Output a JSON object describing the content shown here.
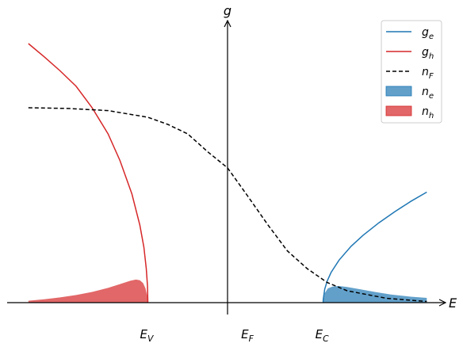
{
  "chart_data": {
    "type": "area",
    "xlabel": "E",
    "ylabel": "g",
    "ticks": [
      {
        "label": "E_V",
        "main": "E",
        "sub": "V",
        "x": -1.0
      },
      {
        "label": "E_F",
        "main": "E",
        "sub": "F",
        "x": 0.27
      },
      {
        "label": "E_C",
        "main": "E",
        "sub": "C",
        "x": 1.2
      }
    ],
    "xlim": [
      -2.5,
      2.6
    ],
    "ylim": [
      -0.05,
      1.1
    ],
    "legend": {
      "placement": "top-right"
    },
    "series": [
      {
        "name": "g_e",
        "main": "g",
        "sub": "e",
        "kind": "line",
        "color": "#1f77b4",
        "x": [
          1.2,
          1.201,
          1.22,
          1.25,
          1.3,
          1.4,
          1.55,
          1.7,
          1.9,
          2.1,
          2.3,
          2.5
        ],
        "y": [
          0.0,
          0.013,
          0.057,
          0.09,
          0.127,
          0.179,
          0.237,
          0.283,
          0.336,
          0.383,
          0.426,
          0.465
        ]
      },
      {
        "name": "g_h",
        "main": "g",
        "sub": "h",
        "kind": "line",
        "color": "#d62728",
        "x": [
          -2.5,
          -2.3,
          -2.1,
          -1.9,
          -1.7,
          -1.5,
          -1.35,
          -1.2,
          -1.1,
          -1.05,
          -1.02,
          -1.005,
          -1.0
        ],
        "y": [
          1.09,
          1.034,
          0.975,
          0.91,
          0.82,
          0.71,
          0.598,
          0.457,
          0.326,
          0.233,
          0.143,
          0.072,
          0.0
        ]
      },
      {
        "name": "n_F",
        "main": "n",
        "sub": "F",
        "kind": "dashed-line",
        "color": "#000000",
        "x": [
          -2.5,
          -2.0,
          -1.5,
          -1.0,
          -0.75,
          -0.5,
          -0.25,
          0.0,
          0.25,
          0.5,
          0.75,
          1.0,
          1.25,
          1.5,
          2.0,
          2.5
        ],
        "y": [
          0.82,
          0.817,
          0.808,
          0.78,
          0.75,
          0.71,
          0.635,
          0.567,
          0.45,
          0.33,
          0.218,
          0.143,
          0.085,
          0.05,
          0.018,
          0.005
        ]
      },
      {
        "name": "n_e",
        "main": "n",
        "sub": "e",
        "kind": "filled-area",
        "color": "#1f77b4",
        "x": [
          1.2,
          1.22,
          1.26,
          1.32,
          1.4,
          1.5,
          1.65,
          1.85,
          2.05,
          2.3,
          2.5
        ],
        "y": [
          0.0,
          0.04,
          0.06,
          0.068,
          0.07,
          0.066,
          0.057,
          0.045,
          0.034,
          0.025,
          0.02
        ]
      },
      {
        "name": "n_h",
        "main": "n",
        "sub": "h",
        "kind": "filled-area",
        "color": "#d62728",
        "x": [
          -2.5,
          -2.3,
          -2.1,
          -1.9,
          -1.7,
          -1.5,
          -1.35,
          -1.22,
          -1.15,
          -1.1,
          -1.06,
          -1.03,
          -1.01,
          -1.0
        ],
        "y": [
          0.008,
          0.014,
          0.022,
          0.032,
          0.045,
          0.062,
          0.078,
          0.092,
          0.097,
          0.094,
          0.082,
          0.06,
          0.03,
          0.0
        ]
      }
    ]
  }
}
